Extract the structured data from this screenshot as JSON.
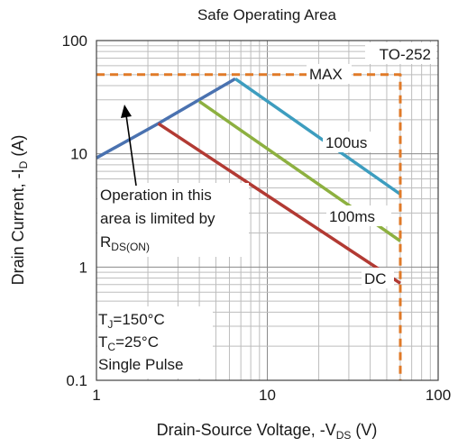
{
  "chart_data": {
    "type": "line",
    "title": "Safe Operating Area",
    "xlabel": {
      "main": "Drain-Source Voltage, -V",
      "sub": "DS",
      "unit": " (V)"
    },
    "ylabel": {
      "main": "Drain Current, -I",
      "sub": "D",
      "unit": " (A)"
    },
    "x_scale": "log",
    "y_scale": "log",
    "xlim": [
      1,
      100
    ],
    "ylim": [
      0.1,
      100
    ],
    "grid": true,
    "x_ticks": [
      {
        "v": 1,
        "label": "1"
      },
      {
        "v": 10,
        "label": "10"
      },
      {
        "v": 100,
        "label": "100"
      }
    ],
    "y_ticks": [
      {
        "v": 0.1,
        "label": "0.1"
      },
      {
        "v": 1,
        "label": "1"
      },
      {
        "v": 10,
        "label": "10"
      },
      {
        "v": 100,
        "label": "100"
      }
    ],
    "series": [
      {
        "key": "rdson",
        "color": "#4a72b0",
        "points": [
          [
            1,
            9.2
          ],
          [
            2.3,
            18.5
          ],
          [
            6.5,
            46
          ]
        ]
      },
      {
        "key": "us100",
        "color": "#3d9dbf",
        "points": [
          [
            6.5,
            46
          ],
          [
            60,
            4.4
          ]
        ]
      },
      {
        "key": "ms100",
        "color": "#8db040",
        "points": [
          [
            4,
            29
          ],
          [
            60,
            1.7
          ]
        ]
      },
      {
        "key": "dc",
        "color": "#b23a33",
        "points": [
          [
            2.3,
            18.5
          ],
          [
            60,
            0.72
          ]
        ]
      },
      {
        "key": "max",
        "color": "#e07a28",
        "dashed": true,
        "points": [
          [
            1,
            50
          ],
          [
            60,
            50
          ],
          [
            60,
            0.1
          ]
        ]
      }
    ],
    "labels": [
      {
        "key": "package",
        "text": "TO-252"
      },
      {
        "key": "max",
        "text": "MAX"
      },
      {
        "key": "us100",
        "text": "100us"
      },
      {
        "key": "ms100",
        "text": "100ms"
      },
      {
        "key": "dc",
        "text": "DC"
      }
    ],
    "note_operation": {
      "line1": "Operation in this",
      "line2": "area is limited by",
      "line3_main": "R",
      "line3_sub": "DS(ON)"
    },
    "conditions": {
      "tj_main": "T",
      "tj_sub": "J",
      "tj_value": "=150°C",
      "tc_main": "T",
      "tc_sub": "C",
      "tc_value": "=25°C",
      "pulse": "Single Pulse"
    }
  }
}
